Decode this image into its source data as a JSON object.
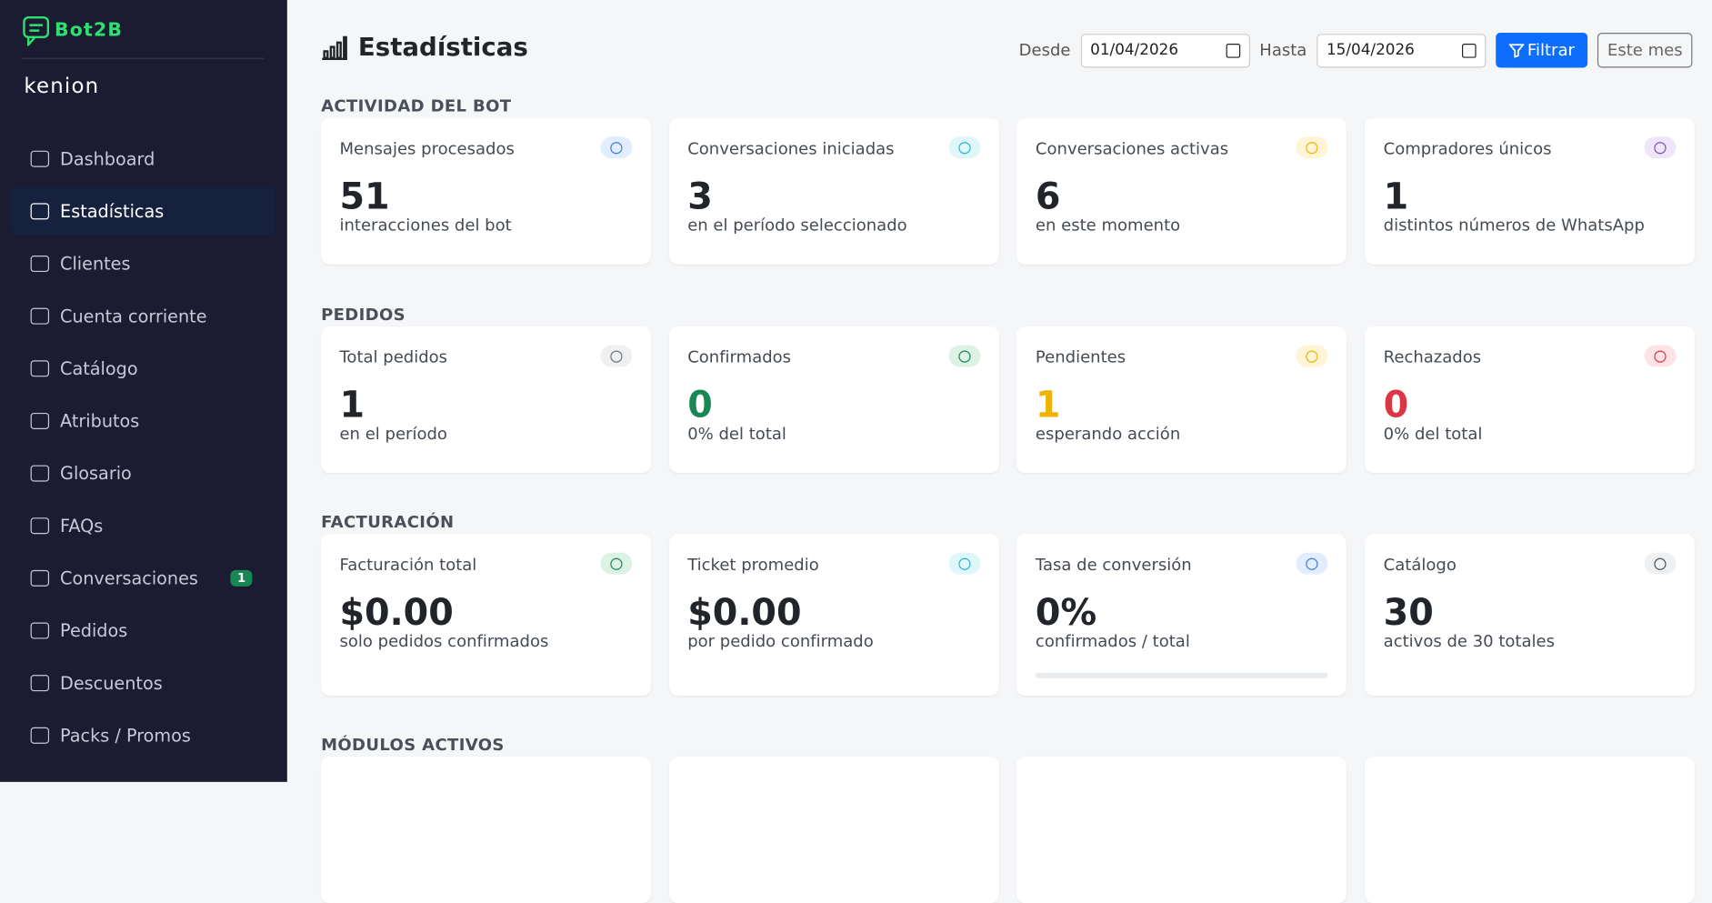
{
  "sidebar": {
    "brand": "Bot2B",
    "company": "kenion",
    "nav": [
      {
        "label": "Dashboard"
      },
      {
        "label": "Estadísticas",
        "active": true
      },
      {
        "label": "Clientes"
      },
      {
        "label": "Cuenta corriente"
      },
      {
        "label": "Catálogo"
      },
      {
        "label": "Atributos"
      },
      {
        "label": "Glosario"
      },
      {
        "label": "FAQs"
      },
      {
        "label": "Conversaciones",
        "badge": "1"
      },
      {
        "label": "Pedidos"
      },
      {
        "label": "Descuentos"
      },
      {
        "label": "Packs / Promos"
      }
    ]
  },
  "header": {
    "title": "Estadísticas",
    "from_label": "Desde",
    "from_value": "01/04/2026",
    "to_label": "Hasta",
    "to_value": "15/04/2026",
    "filter_button": "Filtrar",
    "month_button": "Este mes"
  },
  "sections": [
    {
      "title": "ACTIVIDAD DEL BOT",
      "cards": [
        {
          "label": "Mensajes procesados",
          "value": "51",
          "sub": "interacciones del bot"
        },
        {
          "label": "Conversaciones iniciadas",
          "value": "3",
          "sub": "en el período seleccionado"
        },
        {
          "label": "Conversaciones activas",
          "value": "6",
          "sub": "en este momento"
        },
        {
          "label": "Compradores únicos",
          "value": "1",
          "sub": "distintos números de WhatsApp"
        }
      ]
    },
    {
      "title": "PEDIDOS",
      "cards": [
        {
          "label": "Total pedidos",
          "value": "1",
          "sub": "en el período"
        },
        {
          "label": "Confirmados",
          "value": "0",
          "sub": "0% del total"
        },
        {
          "label": "Pendientes",
          "value": "1",
          "sub": "esperando acción"
        },
        {
          "label": "Rechazados",
          "value": "0",
          "sub": "0% del total"
        }
      ]
    },
    {
      "title": "FACTURACIÓN",
      "cards": [
        {
          "label": "Facturación total",
          "value": "$0.00",
          "sub": "solo pedidos confirmados"
        },
        {
          "label": "Ticket promedio",
          "value": "$0.00",
          "sub": "por pedido confirmado"
        },
        {
          "label": "Tasa de conversión",
          "value": "0%",
          "sub": "confirmados / total"
        },
        {
          "label": "Catálogo",
          "value": "30",
          "sub": "activos de 30 totales"
        }
      ]
    },
    {
      "title": "MÓDULOS ACTIVOS",
      "cards": []
    }
  ]
}
